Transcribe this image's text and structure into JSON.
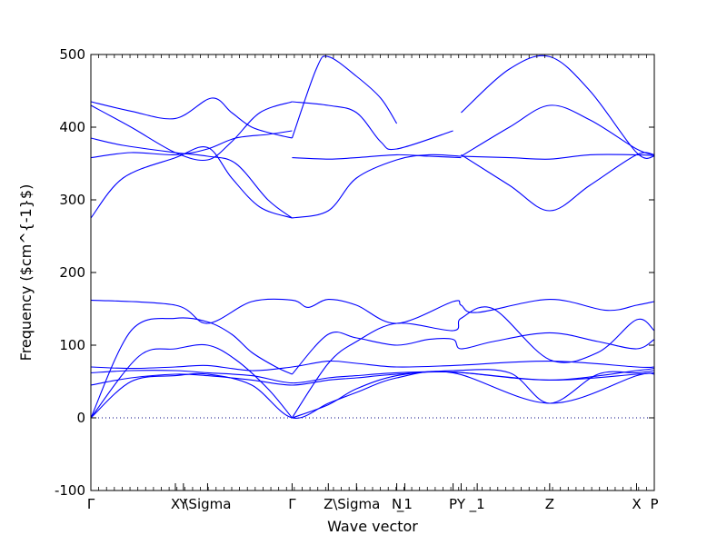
{
  "chart_data": {
    "type": "line",
    "title": "",
    "xlabel": "Wave vector",
    "ylabel": "Frequency ($cm^{-1}$)",
    "ylim": [
      -100,
      500
    ],
    "yticks": [
      -100,
      0,
      100,
      200,
      300,
      400,
      500
    ],
    "xlim": [
      0,
      7.0
    ],
    "zero_line": {
      "y": 0,
      "style": "dotted"
    },
    "x_ticks": [
      {
        "x": 0.0,
        "label": "Γ"
      },
      {
        "x": 1.05,
        "label": "X"
      },
      {
        "x": 1.15,
        "label": "Y"
      },
      {
        "x": 1.45,
        "label": "\\Sigma"
      },
      {
        "x": 2.5,
        "label": "Γ"
      },
      {
        "x": 2.95,
        "label": "Z"
      },
      {
        "x": 3.3,
        "label": "\\Sigma"
      },
      {
        "x": 3.8,
        "label": "N"
      },
      {
        "x": 3.9,
        "label": "_1"
      },
      {
        "x": 4.5,
        "label": "P"
      },
      {
        "x": 4.6,
        "label": "Y"
      },
      {
        "x": 4.8,
        "label": "_1"
      },
      {
        "x": 5.7,
        "label": "Z"
      },
      {
        "x": 6.78,
        "label": "X"
      },
      {
        "x": 7.0,
        "label": "P"
      }
    ],
    "series": [
      {
        "x": [
          0,
          0.5,
          1.05,
          1.5,
          1.75,
          2.0,
          2.3,
          2.5
        ],
        "y": [
          435,
          422,
          412,
          440,
          420,
          400,
          390,
          385
        ]
      },
      {
        "x": [
          0,
          0.5,
          1.05,
          1.45,
          1.75,
          2.1,
          2.5
        ],
        "y": [
          430,
          400,
          365,
          355,
          380,
          420,
          435
        ]
      },
      {
        "x": [
          0,
          0.4,
          1.05,
          1.45,
          1.8,
          2.2,
          2.5
        ],
        "y": [
          385,
          375,
          365,
          360,
          350,
          300,
          275
        ]
      },
      {
        "x": [
          0,
          0.5,
          1.05,
          1.45,
          1.8,
          2.2,
          2.5
        ],
        "y": [
          358,
          365,
          362,
          370,
          385,
          390,
          395
        ]
      },
      {
        "x": [
          0,
          0.4,
          1.05,
          1.45,
          1.75,
          2.1,
          2.5
        ],
        "y": [
          275,
          330,
          358,
          372,
          330,
          290,
          275
        ]
      },
      {
        "x": [
          2.5,
          2.8,
          2.95,
          3.3,
          3.6,
          3.8
        ],
        "y": [
          385,
          480,
          497,
          470,
          440,
          405
        ]
      },
      {
        "x": [
          2.5,
          2.95,
          3.3,
          3.6,
          3.8,
          4.5
        ],
        "y": [
          435,
          430,
          420,
          380,
          370,
          395
        ]
      },
      {
        "x": [
          2.5,
          2.95,
          3.3,
          3.8,
          4.2,
          4.6
        ],
        "y": [
          358,
          356,
          358,
          362,
          360,
          358
        ]
      },
      {
        "x": [
          2.5,
          2.95,
          3.3,
          3.8,
          4.2,
          4.6
        ],
        "y": [
          275,
          285,
          330,
          355,
          362,
          360
        ]
      },
      {
        "x": [
          4.6,
          5.2,
          5.7,
          6.2,
          6.78,
          7.0
        ],
        "y": [
          420,
          480,
          497,
          450,
          365,
          360
        ]
      },
      {
        "x": [
          4.6,
          5.2,
          5.7,
          6.2,
          6.78,
          7.0
        ],
        "y": [
          360,
          400,
          430,
          410,
          370,
          362
        ]
      },
      {
        "x": [
          4.6,
          5.2,
          5.7,
          6.2,
          6.78,
          7.0
        ],
        "y": [
          360,
          358,
          356,
          362,
          362,
          361
        ]
      },
      {
        "x": [
          4.6,
          5.2,
          5.7,
          6.2,
          6.78,
          7.0
        ],
        "y": [
          362,
          320,
          285,
          320,
          362,
          362
        ]
      },
      {
        "x": [
          0,
          1.05,
          1.45,
          2.0,
          2.5,
          2.7,
          2.95,
          3.3,
          3.8,
          4.5,
          4.6,
          4.8,
          5.7,
          6.4,
          6.78,
          7.0
        ],
        "y": [
          162,
          155,
          130,
          160,
          162,
          152,
          163,
          155,
          130,
          160,
          155,
          145,
          163,
          148,
          155,
          160
        ]
      },
      {
        "x": [
          0,
          0.5,
          1.05,
          1.45,
          1.75,
          2.0,
          2.3,
          2.5
        ],
        "y": [
          0,
          120,
          137,
          132,
          115,
          90,
          70,
          60
        ]
      },
      {
        "x": [
          0,
          0.6,
          1.05,
          1.45,
          1.8,
          2.2,
          2.5
        ],
        "y": [
          0,
          85,
          95,
          100,
          80,
          40,
          0
        ]
      },
      {
        "x": [
          2.5,
          2.95,
          3.3,
          3.8,
          4.2,
          4.5,
          4.6,
          5.0,
          5.7,
          6.3,
          6.78,
          7.0
        ],
        "y": [
          60,
          115,
          110,
          100,
          108,
          108,
          95,
          105,
          117,
          105,
          95,
          108
        ]
      },
      {
        "x": [
          2.5,
          2.95,
          3.3,
          3.8,
          4.5,
          4.6,
          5.0,
          5.7,
          6.3,
          6.78,
          7.0
        ],
        "y": [
          0,
          75,
          105,
          130,
          120,
          137,
          150,
          80,
          90,
          135,
          120
        ]
      },
      {
        "x": [
          0,
          0.5,
          1.05,
          1.45,
          2.0,
          2.5,
          2.95,
          3.3,
          3.8,
          4.5,
          5.7,
          6.78,
          7.0
        ],
        "y": [
          70,
          68,
          70,
          72,
          65,
          70,
          78,
          75,
          70,
          72,
          78,
          70,
          70
        ]
      },
      {
        "x": [
          0,
          0.5,
          1.05,
          1.45,
          2.0,
          2.5,
          2.95,
          3.3,
          3.8,
          4.5,
          5.7,
          6.78,
          7.0
        ],
        "y": [
          62,
          65,
          65,
          62,
          58,
          48,
          55,
          58,
          62,
          63,
          52,
          65,
          68
        ]
      },
      {
        "x": [
          0,
          0.5,
          1.05,
          1.45,
          2.0,
          2.5,
          2.95,
          3.3,
          3.8,
          4.5,
          5.7,
          6.78,
          7.0
        ],
        "y": [
          45,
          55,
          60,
          58,
          52,
          45,
          52,
          55,
          60,
          63,
          52,
          60,
          62
        ]
      },
      {
        "x": [
          0,
          0.5,
          1.05,
          1.45,
          2.0,
          2.5,
          2.95,
          3.3,
          3.8,
          4.5,
          5.7,
          6.78,
          7.0
        ],
        "y": [
          0,
          50,
          58,
          60,
          45,
          0,
          20,
          35,
          55,
          62,
          20,
          58,
          60
        ]
      },
      {
        "x": [
          2.5,
          2.95,
          3.3,
          3.8,
          4.5,
          5.2,
          5.7,
          6.3,
          6.78,
          7.0
        ],
        "y": [
          0,
          18,
          40,
          58,
          65,
          62,
          20,
          60,
          62,
          65
        ]
      }
    ]
  }
}
